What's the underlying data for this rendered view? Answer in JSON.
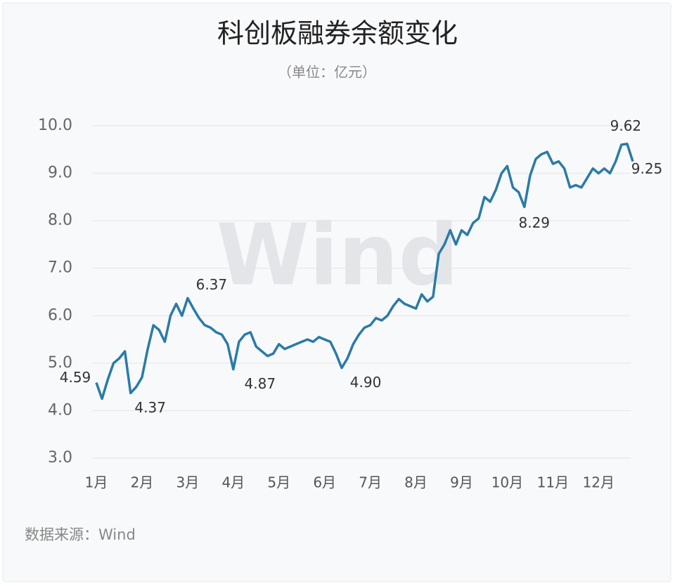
{
  "chart_data": {
    "type": "line",
    "title": "科创板融券余额变化",
    "subtitle": "（单位：亿元）",
    "source": "数据来源：Wind",
    "watermark": "Wind",
    "categories": [
      "1月",
      null,
      null,
      null,
      null,
      null,
      null,
      null,
      "2月",
      null,
      null,
      null,
      null,
      null,
      null,
      null,
      "3月",
      null,
      null,
      null,
      null,
      null,
      null,
      null,
      "4月",
      null,
      null,
      null,
      null,
      null,
      null,
      null,
      "5月",
      null,
      null,
      null,
      null,
      null,
      null,
      null,
      "6月",
      null,
      null,
      null,
      null,
      null,
      null,
      null,
      "7月",
      null,
      null,
      null,
      null,
      null,
      null,
      null,
      "8月",
      null,
      null,
      null,
      null,
      null,
      null,
      null,
      "9月",
      null,
      null,
      null,
      null,
      null,
      null,
      null,
      "10月",
      null,
      null,
      null,
      null,
      null,
      null,
      null,
      "11月",
      null,
      null,
      null,
      null,
      null,
      null,
      null,
      "12月",
      null,
      null,
      null,
      null,
      null,
      null
    ],
    "series": [
      {
        "name": "融券余额",
        "color": "#2b7ba6",
        "values": [
          4.59,
          4.25,
          4.65,
          5.0,
          5.1,
          5.25,
          4.37,
          4.5,
          4.7,
          5.3,
          5.8,
          5.7,
          5.45,
          6.0,
          6.25,
          6.0,
          6.37,
          6.15,
          5.95,
          5.8,
          5.75,
          5.65,
          5.6,
          5.4,
          4.87,
          5.45,
          5.6,
          5.65,
          5.35,
          5.25,
          5.15,
          5.2,
          5.4,
          5.3,
          5.35,
          5.4,
          5.45,
          5.5,
          5.45,
          5.55,
          5.5,
          5.45,
          5.2,
          4.9,
          5.1,
          5.4,
          5.6,
          5.75,
          5.8,
          5.95,
          5.9,
          6.0,
          6.2,
          6.35,
          6.25,
          6.2,
          6.15,
          6.45,
          6.3,
          6.4,
          7.3,
          7.5,
          7.8,
          7.5,
          7.8,
          7.7,
          7.95,
          8.05,
          8.5,
          8.4,
          8.65,
          9.0,
          9.15,
          8.7,
          8.6,
          8.29,
          8.95,
          9.3,
          9.4,
          9.45,
          9.2,
          9.25,
          9.1,
          8.7,
          8.75,
          8.7,
          8.9,
          9.1,
          9.0,
          9.1,
          9.0,
          9.25,
          9.6,
          9.62,
          9.25
        ],
        "value_labels": [
          "4.59",
          null,
          null,
          null,
          null,
          null,
          "4.37",
          null,
          null,
          null,
          null,
          null,
          null,
          null,
          null,
          null,
          "6.37",
          null,
          null,
          null,
          null,
          null,
          null,
          null,
          "4.87",
          null,
          null,
          null,
          null,
          null,
          null,
          null,
          null,
          null,
          null,
          null,
          null,
          null,
          null,
          null,
          null,
          null,
          null,
          "4.90",
          null,
          null,
          null,
          null,
          null,
          null,
          null,
          null,
          null,
          null,
          null,
          null,
          null,
          null,
          null,
          null,
          null,
          null,
          null,
          null,
          null,
          null,
          null,
          null,
          null,
          null,
          null,
          null,
          null,
          null,
          null,
          "8.29",
          null,
          null,
          null,
          null,
          null,
          null,
          null,
          null,
          null,
          null,
          null,
          null,
          null,
          null,
          null,
          null,
          null,
          "9.62",
          "9.25"
        ]
      }
    ],
    "ylim": [
      3,
      10
    ],
    "yticks": [
      {
        "value": 3,
        "label": "3.0"
      },
      {
        "value": 4,
        "label": "4.0"
      },
      {
        "value": 5,
        "label": "5.0"
      },
      {
        "value": 6,
        "label": "6.0"
      },
      {
        "value": 7,
        "label": "7.0"
      },
      {
        "value": 8,
        "label": "8.0"
      },
      {
        "value": 9,
        "label": "9.0"
      },
      {
        "value": 10,
        "label": "10.0"
      }
    ],
    "grid": true
  }
}
